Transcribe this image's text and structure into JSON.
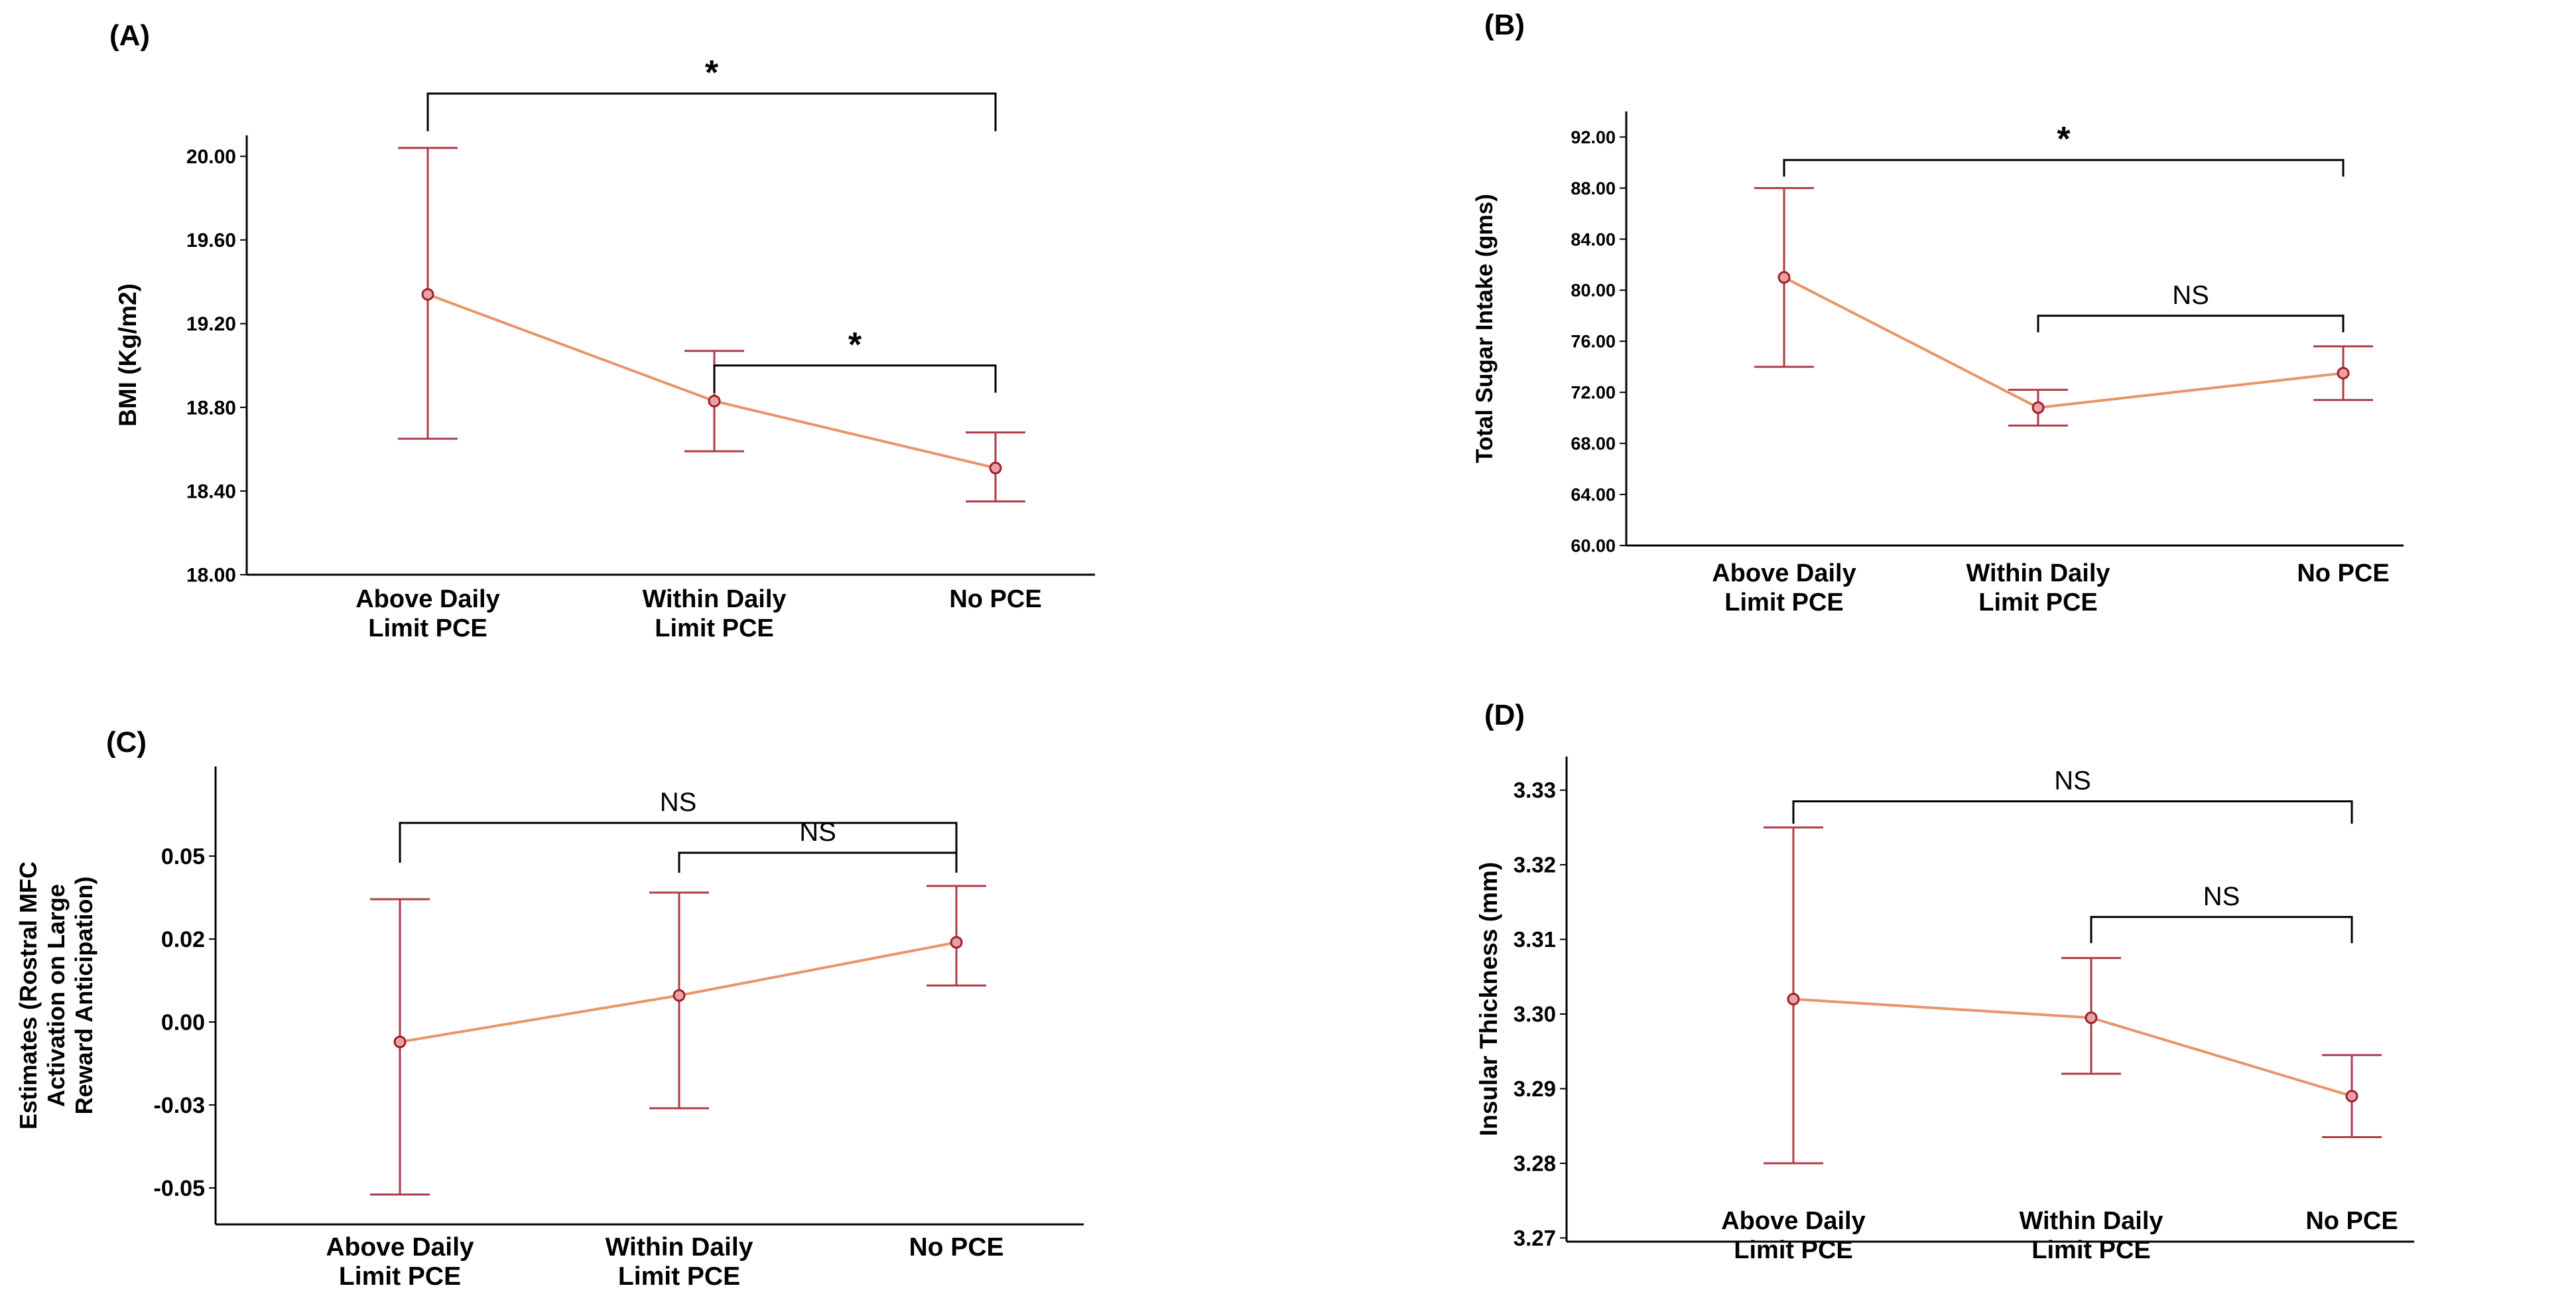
{
  "colors": {
    "line": "#e8956a",
    "errorbar": "#b03a48",
    "marker_edge": "#a01f2e",
    "marker_fill": "#e7a3a3",
    "axis": "#000000",
    "bracket": "#000000"
  },
  "chart_data": [
    {
      "panel": "(A)",
      "type": "line",
      "categories": [
        [
          "Above Daily",
          "Limit PCE"
        ],
        [
          "Within Daily",
          "Limit PCE"
        ],
        [
          "No PCE"
        ]
      ],
      "series": [
        {
          "name": "BMI",
          "values": [
            19.34,
            18.83,
            18.51
          ],
          "ci_low": [
            18.65,
            18.59,
            18.35
          ],
          "ci_high": [
            20.04,
            19.07,
            18.68
          ]
        }
      ],
      "ylabel": "BMI (Kg/m2)",
      "xlabel": "",
      "ylim": [
        18.0,
        20.1
      ],
      "yticks": [
        18.0,
        18.4,
        18.8,
        19.2,
        19.6,
        20.0
      ],
      "ytick_labels": [
        "18.00",
        "18.40",
        "18.80",
        "19.20",
        "19.60",
        "20.00"
      ],
      "brackets": [
        {
          "from": 0,
          "to": 2,
          "label": "*",
          "y": 20.3,
          "tip": 20.12
        },
        {
          "from": 1,
          "to": 2,
          "label": "*",
          "y": 19.0,
          "tip": 18.87
        }
      ]
    },
    {
      "panel": "(B)",
      "type": "line",
      "categories": [
        [
          "Above Daily",
          "Limit PCE"
        ],
        [
          "Within Daily",
          "Limit PCE"
        ],
        [
          "No PCE"
        ]
      ],
      "series": [
        {
          "name": "Total Sugar Intake",
          "values": [
            81.0,
            70.8,
            73.5
          ],
          "ci_low": [
            74.0,
            69.4,
            71.4
          ],
          "ci_high": [
            88.0,
            72.2,
            75.6
          ]
        }
      ],
      "ylabel": "Total Sugar Intake (gms)",
      "xlabel": "",
      "ylim": [
        60.0,
        94.0
      ],
      "yticks": [
        60,
        64,
        68,
        72,
        76,
        80,
        84,
        88,
        92
      ],
      "ytick_labels": [
        "60.00",
        "64.00",
        "68.00",
        "72.00",
        "76.00",
        "80.00",
        "84.00",
        "88.00",
        "92.00"
      ],
      "brackets": [
        {
          "from": 0,
          "to": 2,
          "label": "*",
          "y": 90.2,
          "tip": 88.9
        },
        {
          "from": 1,
          "to": 2,
          "label": "NS",
          "y": 78.0,
          "tip": 76.7
        }
      ]
    },
    {
      "panel": "(C)",
      "type": "line",
      "categories": [
        [
          "Above Daily",
          "Limit PCE"
        ],
        [
          "Within Daily",
          "Limit PCE"
        ],
        [
          "No PCE"
        ]
      ],
      "series": [
        {
          "name": "Estimates",
          "values": [
            -0.006,
            0.008,
            0.024
          ],
          "ci_low": [
            -0.052,
            -0.026,
            0.011
          ],
          "ci_high": [
            0.037,
            0.039,
            0.041
          ]
        }
      ],
      "ylabel": [
        "Estimates (Rostral MFC",
        "Activation on Large",
        "Reward Anticipation)"
      ],
      "xlabel": "",
      "ylim": [
        -0.061,
        0.077
      ],
      "yticks": [
        -0.05,
        -0.025,
        0.0,
        0.025,
        0.05
      ],
      "ytick_labels": [
        "-0.05",
        "-0.03",
        "0.00",
        "0.02",
        "0.05"
      ],
      "brackets": [
        {
          "from": 0,
          "to": 2,
          "label": "NS",
          "y": 0.06,
          "tip": 0.048
        },
        {
          "from": 1,
          "to": 2,
          "label": "NS",
          "y": 0.051,
          "tip": 0.045
        }
      ]
    },
    {
      "panel": "(D)",
      "type": "line",
      "categories": [
        [
          "Above Daily",
          "Limit PCE"
        ],
        [
          "Within Daily",
          "Limit PCE"
        ],
        [
          "No PCE"
        ]
      ],
      "series": [
        {
          "name": "Insular Thickness",
          "values": [
            3.302,
            3.2995,
            3.289
          ],
          "ci_low": [
            3.28,
            3.292,
            3.2835
          ],
          "ci_high": [
            3.325,
            3.3075,
            3.2945
          ]
        }
      ],
      "ylabel": "Insular Thickness (mm)",
      "xlabel": "",
      "ylim": [
        3.2695,
        3.3345
      ],
      "yticks": [
        3.27,
        3.28,
        3.29,
        3.3,
        3.31,
        3.32,
        3.33
      ],
      "ytick_labels": [
        "3.27",
        "3.28",
        "3.29",
        "3.30",
        "3.31",
        "3.32",
        "3.33"
      ],
      "brackets": [
        {
          "from": 0,
          "to": 2,
          "label": "NS",
          "y": 3.3285,
          "tip": 3.3255
        },
        {
          "from": 1,
          "to": 2,
          "label": "NS",
          "y": 3.313,
          "tip": 3.3095
        }
      ]
    }
  ]
}
